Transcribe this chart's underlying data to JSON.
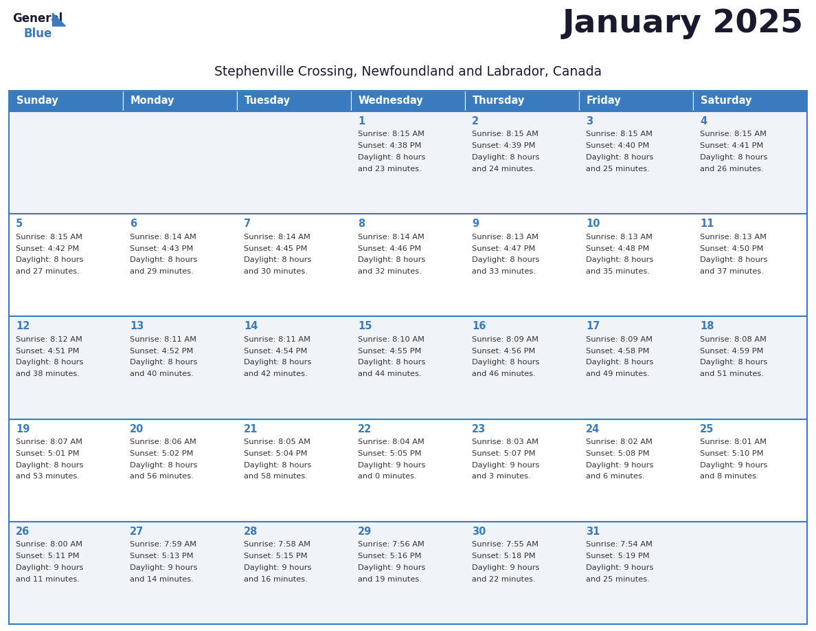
{
  "title": "January 2025",
  "subtitle": "Stephenville Crossing, Newfoundland and Labrador, Canada",
  "header_bg_color": "#3a7bbf",
  "header_text_color": "#ffffff",
  "days_of_week": [
    "Sunday",
    "Monday",
    "Tuesday",
    "Wednesday",
    "Thursday",
    "Friday",
    "Saturday"
  ],
  "row_bg_even": "#f0f4f8",
  "row_bg_odd": "#ffffff",
  "separator_color": "#3a7bbf",
  "day_num_color": "#3a7bbf",
  "cell_text_color": "#333333",
  "calendar": [
    [
      {
        "day": null,
        "sunrise": null,
        "sunset": null,
        "daylight": null
      },
      {
        "day": null,
        "sunrise": null,
        "sunset": null,
        "daylight": null
      },
      {
        "day": null,
        "sunrise": null,
        "sunset": null,
        "daylight": null
      },
      {
        "day": 1,
        "sunrise": "8:15 AM",
        "sunset": "4:38 PM",
        "daylight": "8 hours\nand 23 minutes."
      },
      {
        "day": 2,
        "sunrise": "8:15 AM",
        "sunset": "4:39 PM",
        "daylight": "8 hours\nand 24 minutes."
      },
      {
        "day": 3,
        "sunrise": "8:15 AM",
        "sunset": "4:40 PM",
        "daylight": "8 hours\nand 25 minutes."
      },
      {
        "day": 4,
        "sunrise": "8:15 AM",
        "sunset": "4:41 PM",
        "daylight": "8 hours\nand 26 minutes."
      }
    ],
    [
      {
        "day": 5,
        "sunrise": "8:15 AM",
        "sunset": "4:42 PM",
        "daylight": "8 hours\nand 27 minutes."
      },
      {
        "day": 6,
        "sunrise": "8:14 AM",
        "sunset": "4:43 PM",
        "daylight": "8 hours\nand 29 minutes."
      },
      {
        "day": 7,
        "sunrise": "8:14 AM",
        "sunset": "4:45 PM",
        "daylight": "8 hours\nand 30 minutes."
      },
      {
        "day": 8,
        "sunrise": "8:14 AM",
        "sunset": "4:46 PM",
        "daylight": "8 hours\nand 32 minutes."
      },
      {
        "day": 9,
        "sunrise": "8:13 AM",
        "sunset": "4:47 PM",
        "daylight": "8 hours\nand 33 minutes."
      },
      {
        "day": 10,
        "sunrise": "8:13 AM",
        "sunset": "4:48 PM",
        "daylight": "8 hours\nand 35 minutes."
      },
      {
        "day": 11,
        "sunrise": "8:13 AM",
        "sunset": "4:50 PM",
        "daylight": "8 hours\nand 37 minutes."
      }
    ],
    [
      {
        "day": 12,
        "sunrise": "8:12 AM",
        "sunset": "4:51 PM",
        "daylight": "8 hours\nand 38 minutes."
      },
      {
        "day": 13,
        "sunrise": "8:11 AM",
        "sunset": "4:52 PM",
        "daylight": "8 hours\nand 40 minutes."
      },
      {
        "day": 14,
        "sunrise": "8:11 AM",
        "sunset": "4:54 PM",
        "daylight": "8 hours\nand 42 minutes."
      },
      {
        "day": 15,
        "sunrise": "8:10 AM",
        "sunset": "4:55 PM",
        "daylight": "8 hours\nand 44 minutes."
      },
      {
        "day": 16,
        "sunrise": "8:09 AM",
        "sunset": "4:56 PM",
        "daylight": "8 hours\nand 46 minutes."
      },
      {
        "day": 17,
        "sunrise": "8:09 AM",
        "sunset": "4:58 PM",
        "daylight": "8 hours\nand 49 minutes."
      },
      {
        "day": 18,
        "sunrise": "8:08 AM",
        "sunset": "4:59 PM",
        "daylight": "8 hours\nand 51 minutes."
      }
    ],
    [
      {
        "day": 19,
        "sunrise": "8:07 AM",
        "sunset": "5:01 PM",
        "daylight": "8 hours\nand 53 minutes."
      },
      {
        "day": 20,
        "sunrise": "8:06 AM",
        "sunset": "5:02 PM",
        "daylight": "8 hours\nand 56 minutes."
      },
      {
        "day": 21,
        "sunrise": "8:05 AM",
        "sunset": "5:04 PM",
        "daylight": "8 hours\nand 58 minutes."
      },
      {
        "day": 22,
        "sunrise": "8:04 AM",
        "sunset": "5:05 PM",
        "daylight": "9 hours\nand 0 minutes."
      },
      {
        "day": 23,
        "sunrise": "8:03 AM",
        "sunset": "5:07 PM",
        "daylight": "9 hours\nand 3 minutes."
      },
      {
        "day": 24,
        "sunrise": "8:02 AM",
        "sunset": "5:08 PM",
        "daylight": "9 hours\nand 6 minutes."
      },
      {
        "day": 25,
        "sunrise": "8:01 AM",
        "sunset": "5:10 PM",
        "daylight": "9 hours\nand 8 minutes."
      }
    ],
    [
      {
        "day": 26,
        "sunrise": "8:00 AM",
        "sunset": "5:11 PM",
        "daylight": "9 hours\nand 11 minutes."
      },
      {
        "day": 27,
        "sunrise": "7:59 AM",
        "sunset": "5:13 PM",
        "daylight": "9 hours\nand 14 minutes."
      },
      {
        "day": 28,
        "sunrise": "7:58 AM",
        "sunset": "5:15 PM",
        "daylight": "9 hours\nand 16 minutes."
      },
      {
        "day": 29,
        "sunrise": "7:56 AM",
        "sunset": "5:16 PM",
        "daylight": "9 hours\nand 19 minutes."
      },
      {
        "day": 30,
        "sunrise": "7:55 AM",
        "sunset": "5:18 PM",
        "daylight": "9 hours\nand 22 minutes."
      },
      {
        "day": 31,
        "sunrise": "7:54 AM",
        "sunset": "5:19 PM",
        "daylight": "9 hours\nand 25 minutes."
      },
      {
        "day": null,
        "sunrise": null,
        "sunset": null,
        "daylight": null
      }
    ]
  ]
}
